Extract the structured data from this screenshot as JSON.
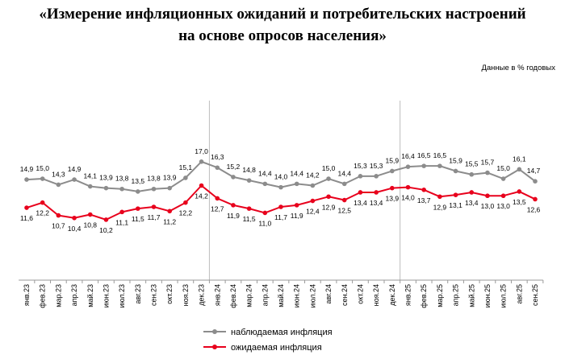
{
  "header": {
    "title_line1": "«Измерение инфляционных ожиданий и потребительских настроений",
    "title_line2": "на основе опросов населения»",
    "units_note": "Данные в % годовых"
  },
  "chart_data": {
    "type": "line",
    "categories": [
      "янв.23",
      "фев.23",
      "мар.23",
      "апр.23",
      "май.23",
      "июн.23",
      "июл.23",
      "авг.23",
      "сен.23",
      "окт.23",
      "ноя.23",
      "дек.23",
      "янв.24",
      "фев.24",
      "мар.24",
      "апр.24",
      "май.24",
      "июн.24",
      "июл.24",
      "авг.24",
      "сен.24",
      "окт.24",
      "ноя.24",
      "дек.24",
      "янв.25",
      "фев.25",
      "мар.25",
      "апр.25",
      "май.25",
      "июн.25",
      "июл.25",
      "авг.25",
      "сен.25"
    ],
    "series": [
      {
        "name": "наблюдаемая инфляция",
        "color": "#8c8c8c",
        "values": [
          14.9,
          15.0,
          14.3,
          14.9,
          14.1,
          13.9,
          13.8,
          13.5,
          13.8,
          13.9,
          15.1,
          17.0,
          16.3,
          15.2,
          14.8,
          14.4,
          14.0,
          14.4,
          14.2,
          15.0,
          14.4,
          15.3,
          15.3,
          15.9,
          16.4,
          16.5,
          16.5,
          15.9,
          15.5,
          15.7,
          15.0,
          16.1,
          14.7
        ],
        "labels": [
          "14,9",
          "15,0",
          "14,3",
          "14,9",
          "14,1",
          "13,9",
          "13,8",
          "13,5",
          "13,8",
          "13,9",
          "15,1",
          "17,0",
          "16,3",
          "15,2",
          "14,8",
          "14,4",
          "14,0",
          "14,4",
          "14,2",
          "15,0",
          "14,4",
          "15,3",
          "15,3",
          "15,9",
          "16,4",
          "16,5",
          "16,5",
          "15,9",
          "15,5",
          "15,7",
          "15,0",
          "16,1",
          "14,7"
        ]
      },
      {
        "name": "ожидаемая инфляция",
        "color": "#e8001c",
        "values": [
          11.6,
          12.2,
          10.7,
          10.4,
          10.8,
          10.2,
          11.1,
          11.5,
          11.7,
          11.2,
          12.2,
          14.2,
          12.7,
          11.9,
          11.5,
          11.0,
          11.7,
          11.9,
          12.4,
          12.9,
          12.5,
          13.4,
          13.4,
          13.9,
          14.0,
          13.7,
          12.9,
          13.1,
          13.4,
          13.0,
          13.0,
          13.5,
          12.6
        ],
        "labels": [
          "11,6",
          "12,2",
          "10,7",
          "10,4",
          "10,8",
          "10,2",
          "11,1",
          "11,5",
          "11,7",
          "11,2",
          "12,2",
          "14,2",
          "12,7",
          "11,9",
          "11,5",
          "11,0",
          "11,7",
          "11,9",
          "12,4",
          "12,9",
          "12,5",
          "13,4",
          "13,4",
          "13,9",
          "14,0",
          "13,7",
          "12,9",
          "13,1",
          "13,4",
          "13,0",
          "13,0",
          "13,5",
          "12,6"
        ]
      }
    ],
    "year_separators_after": [
      "дек.23",
      "дек.24"
    ],
    "legend_position": "bottom-center",
    "grid": false
  }
}
